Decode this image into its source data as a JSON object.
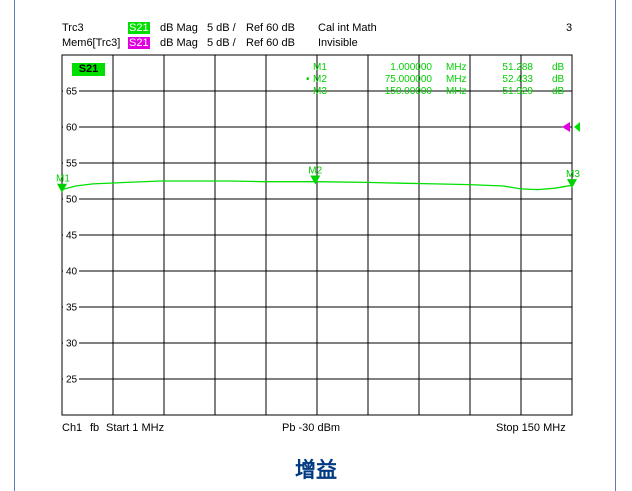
{
  "header": {
    "row1": {
      "trace": "Trc3",
      "param": "S21",
      "format": "dB Mag",
      "scale": "5 dB /",
      "ref": "Ref 60 dB",
      "math": "Cal int Math",
      "channel": "3"
    },
    "row2": {
      "trace": "Mem6[Trc3]",
      "param": "S21",
      "format": "dB Mag",
      "scale": "5 dB /",
      "ref": "Ref 60 dB",
      "math": "Invisible"
    }
  },
  "plot": {
    "active_trace_label": "S21",
    "y_ticks": [
      "65",
      "60",
      "55",
      "50",
      "45",
      "40",
      "35",
      "30",
      "25"
    ],
    "ref_marker_color": "#e000e0",
    "trace_color": "#00e000"
  },
  "markers": [
    {
      "name": "M1",
      "freq": "1.000000",
      "unit": "MHz",
      "value": "51.288",
      "vunit": "dB",
      "active": false
    },
    {
      "name": "M2",
      "freq": "75.000000",
      "unit": "MHz",
      "value": "52.433",
      "vunit": "dB",
      "active": true
    },
    {
      "name": "M3",
      "freq": "150.00000",
      "unit": "MHz",
      "value": "51.929",
      "vunit": "dB",
      "active": false
    }
  ],
  "chart_data": {
    "type": "line",
    "title": "",
    "xlabel": "",
    "ylabel": "",
    "xlim": [
      1,
      150
    ],
    "ylim": [
      20,
      70
    ],
    "grid": true,
    "x_unit": "MHz",
    "y_unit": "dB",
    "series": [
      {
        "name": "S21",
        "x": [
          1,
          5,
          10,
          20,
          30,
          40,
          50,
          60,
          75,
          90,
          100,
          110,
          120,
          130,
          135,
          140,
          145,
          150
        ],
        "values": [
          51.3,
          51.8,
          52.1,
          52.3,
          52.5,
          52.5,
          52.5,
          52.4,
          52.4,
          52.3,
          52.2,
          52.1,
          52.0,
          51.8,
          51.4,
          51.3,
          51.5,
          51.9
        ]
      }
    ],
    "markers": [
      {
        "label": "M1",
        "x": 1,
        "y": 51.288
      },
      {
        "label": "M2",
        "x": 75,
        "y": 52.433
      },
      {
        "label": "M3",
        "x": 150,
        "y": 51.929
      }
    ],
    "reference_level": 60
  },
  "footer": {
    "channel": "Ch1",
    "mode": "fb",
    "start": "Start  1 MHz",
    "power": "Pb  -30 dBm",
    "stop": "Stop  150 MHz"
  },
  "caption": "增益"
}
